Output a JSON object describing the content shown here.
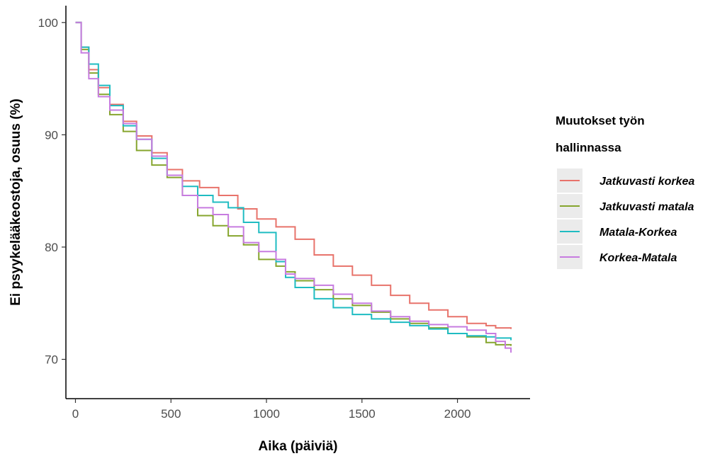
{
  "chart_data": {
    "type": "line",
    "step": true,
    "title": "",
    "xlabel": "Aika (päiviä)",
    "ylabel": "Ei psyykelääkeostoja, osuus (%)",
    "xlim": [
      -50,
      2380
    ],
    "ylim": [
      66.5,
      101.5
    ],
    "xticks": [
      0,
      500,
      1000,
      1500,
      2000
    ],
    "yticks": [
      70,
      80,
      90,
      100
    ],
    "grid": false,
    "legend": {
      "position": "right",
      "title_lines": [
        "Muutokset työn",
        "hallinnassa"
      ]
    },
    "series": [
      {
        "name": "Jatkuvasti korkea",
        "color": "#e8736b",
        "points": [
          [
            0,
            100
          ],
          [
            30,
            97.8
          ],
          [
            70,
            95.8
          ],
          [
            120,
            94.2
          ],
          [
            180,
            92.7
          ],
          [
            250,
            91.2
          ],
          [
            320,
            89.9
          ],
          [
            400,
            88.4
          ],
          [
            480,
            86.9
          ],
          [
            560,
            85.9
          ],
          [
            650,
            85.3
          ],
          [
            750,
            84.6
          ],
          [
            850,
            83.4
          ],
          [
            950,
            82.5
          ],
          [
            1050,
            81.8
          ],
          [
            1150,
            80.7
          ],
          [
            1250,
            79.3
          ],
          [
            1350,
            78.3
          ],
          [
            1450,
            77.5
          ],
          [
            1550,
            76.6
          ],
          [
            1650,
            75.7
          ],
          [
            1750,
            75.0
          ],
          [
            1850,
            74.4
          ],
          [
            1950,
            73.8
          ],
          [
            2050,
            73.2
          ],
          [
            2150,
            73.0
          ],
          [
            2200,
            72.8
          ],
          [
            2280,
            72.7
          ]
        ]
      },
      {
        "name": "Jatkuvasti matala",
        "color": "#86a52e",
        "points": [
          [
            0,
            100
          ],
          [
            30,
            97.6
          ],
          [
            70,
            95.5
          ],
          [
            120,
            93.6
          ],
          [
            180,
            91.8
          ],
          [
            250,
            90.3
          ],
          [
            320,
            88.6
          ],
          [
            400,
            87.3
          ],
          [
            480,
            86.2
          ],
          [
            560,
            84.6
          ],
          [
            640,
            82.8
          ],
          [
            720,
            81.9
          ],
          [
            800,
            81.0
          ],
          [
            880,
            80.2
          ],
          [
            960,
            78.9
          ],
          [
            1050,
            78.3
          ],
          [
            1100,
            77.8
          ],
          [
            1150,
            77.0
          ],
          [
            1250,
            76.2
          ],
          [
            1350,
            75.4
          ],
          [
            1450,
            74.8
          ],
          [
            1550,
            74.2
          ],
          [
            1650,
            73.6
          ],
          [
            1750,
            73.2
          ],
          [
            1850,
            72.8
          ],
          [
            1950,
            72.3
          ],
          [
            2050,
            72.0
          ],
          [
            2150,
            71.5
          ],
          [
            2200,
            71.3
          ],
          [
            2280,
            71.2
          ]
        ]
      },
      {
        "name": "Matala-Korkea",
        "color": "#1fbcc2",
        "points": [
          [
            0,
            100
          ],
          [
            30,
            97.8
          ],
          [
            70,
            96.3
          ],
          [
            120,
            94.4
          ],
          [
            180,
            92.6
          ],
          [
            250,
            90.8
          ],
          [
            320,
            89.6
          ],
          [
            400,
            87.9
          ],
          [
            480,
            86.4
          ],
          [
            560,
            85.4
          ],
          [
            640,
            84.6
          ],
          [
            720,
            84.0
          ],
          [
            800,
            83.5
          ],
          [
            880,
            82.2
          ],
          [
            960,
            81.3
          ],
          [
            1050,
            78.7
          ],
          [
            1100,
            77.3
          ],
          [
            1150,
            76.4
          ],
          [
            1250,
            75.4
          ],
          [
            1350,
            74.6
          ],
          [
            1450,
            74.0
          ],
          [
            1550,
            73.6
          ],
          [
            1650,
            73.3
          ],
          [
            1750,
            73.0
          ],
          [
            1850,
            72.7
          ],
          [
            1950,
            72.3
          ],
          [
            2050,
            72.1
          ],
          [
            2150,
            72.0
          ],
          [
            2200,
            71.9
          ],
          [
            2280,
            71.7
          ]
        ]
      },
      {
        "name": "Korkea-Matala",
        "color": "#c77ce0",
        "points": [
          [
            0,
            100
          ],
          [
            30,
            97.3
          ],
          [
            70,
            95.0
          ],
          [
            120,
            93.4
          ],
          [
            180,
            92.2
          ],
          [
            250,
            91.0
          ],
          [
            320,
            89.6
          ],
          [
            400,
            88.1
          ],
          [
            480,
            86.4
          ],
          [
            560,
            84.6
          ],
          [
            640,
            83.5
          ],
          [
            720,
            82.9
          ],
          [
            800,
            81.8
          ],
          [
            880,
            80.4
          ],
          [
            960,
            79.6
          ],
          [
            1050,
            78.9
          ],
          [
            1100,
            77.6
          ],
          [
            1150,
            77.2
          ],
          [
            1250,
            76.6
          ],
          [
            1350,
            75.8
          ],
          [
            1450,
            75.0
          ],
          [
            1550,
            74.3
          ],
          [
            1650,
            73.8
          ],
          [
            1750,
            73.4
          ],
          [
            1850,
            73.1
          ],
          [
            1950,
            72.9
          ],
          [
            2050,
            72.6
          ],
          [
            2150,
            72.3
          ],
          [
            2200,
            71.6
          ],
          [
            2250,
            71.0
          ],
          [
            2280,
            70.6
          ]
        ]
      }
    ]
  }
}
